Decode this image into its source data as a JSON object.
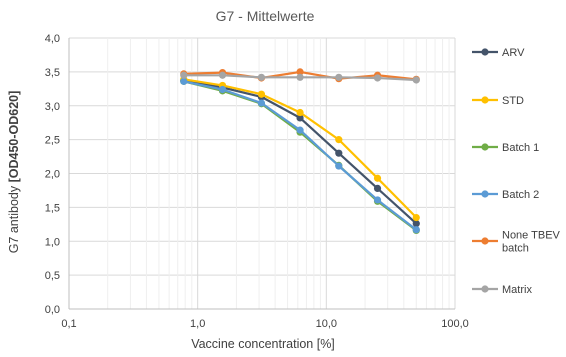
{
  "chart_data": {
    "type": "line",
    "title": "G7 - Mittelwerte",
    "xlabel": "Vaccine concentration [%]",
    "ylabel_plain": "G7 antibody ",
    "ylabel_bold": "[OD450-OD620]",
    "x_scale": "log",
    "xlim": [
      0.1,
      100
    ],
    "ylim": [
      0,
      4
    ],
    "x_ticks": [
      "0,1",
      "1,0",
      "10,0",
      "100,0"
    ],
    "y_ticks": [
      "0,0",
      "0,5",
      "1,0",
      "1,5",
      "2,0",
      "2,5",
      "3,0",
      "3,5",
      "4,0"
    ],
    "grid": true,
    "legend_position": "right",
    "x": [
      0.78,
      1.56,
      3.13,
      6.25,
      12.5,
      25,
      50
    ],
    "series": [
      {
        "name": "ARV",
        "color": "#44546A",
        "values": [
          3.37,
          3.27,
          3.13,
          2.82,
          2.3,
          1.78,
          1.26
        ]
      },
      {
        "name": "STD",
        "color": "#FFC000",
        "values": [
          3.39,
          3.3,
          3.17,
          2.9,
          2.5,
          1.93,
          1.35
        ]
      },
      {
        "name": "Batch 1",
        "color": "#70AD47",
        "values": [
          3.36,
          3.22,
          3.03,
          2.61,
          2.12,
          1.59,
          1.16
        ]
      },
      {
        "name": "Batch 2",
        "color": "#5B9BD5",
        "values": [
          3.36,
          3.24,
          3.04,
          2.64,
          2.11,
          1.61,
          1.17
        ]
      },
      {
        "name": "None TBEV batch",
        "legend_lines": [
          "None TBEV",
          "batch"
        ],
        "color": "#ED7D31",
        "values": [
          3.47,
          3.49,
          3.41,
          3.5,
          3.4,
          3.45,
          3.39
        ]
      },
      {
        "name": "Matrix",
        "color": "#A5A5A5",
        "values": [
          3.45,
          3.45,
          3.42,
          3.42,
          3.42,
          3.41,
          3.38
        ]
      }
    ]
  }
}
